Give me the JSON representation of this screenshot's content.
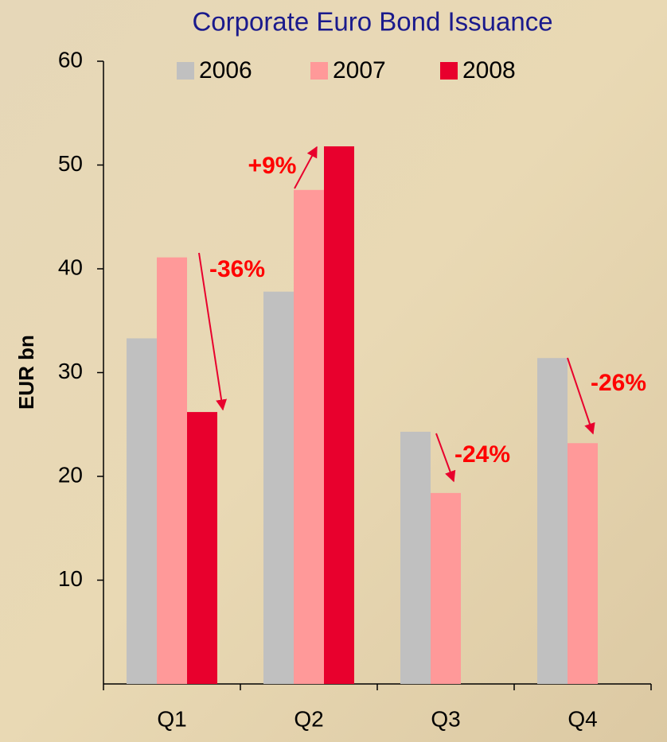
{
  "chart_data": {
    "type": "bar",
    "title": "Corporate Euro Bond Issuance",
    "y_label": "EUR bn",
    "categories": [
      "Q1",
      "Q2",
      "Q3",
      "Q4"
    ],
    "series": [
      {
        "name": "2006",
        "color": "#c0c0c0",
        "values": [
          33.3,
          37.8,
          24.3,
          31.4
        ]
      },
      {
        "name": "2007",
        "color": "#ff9999",
        "values": [
          41.1,
          47.6,
          18.4,
          23.2
        ]
      },
      {
        "name": "2008",
        "color": "#e8002d",
        "values": [
          26.2,
          51.8,
          null,
          null
        ]
      }
    ],
    "ylim": [
      0,
      60
    ],
    "yticks": [
      10,
      20,
      30,
      40,
      50,
      60
    ],
    "annotations": [
      "-36%",
      "+9%",
      "-24%",
      "-26%"
    ]
  }
}
